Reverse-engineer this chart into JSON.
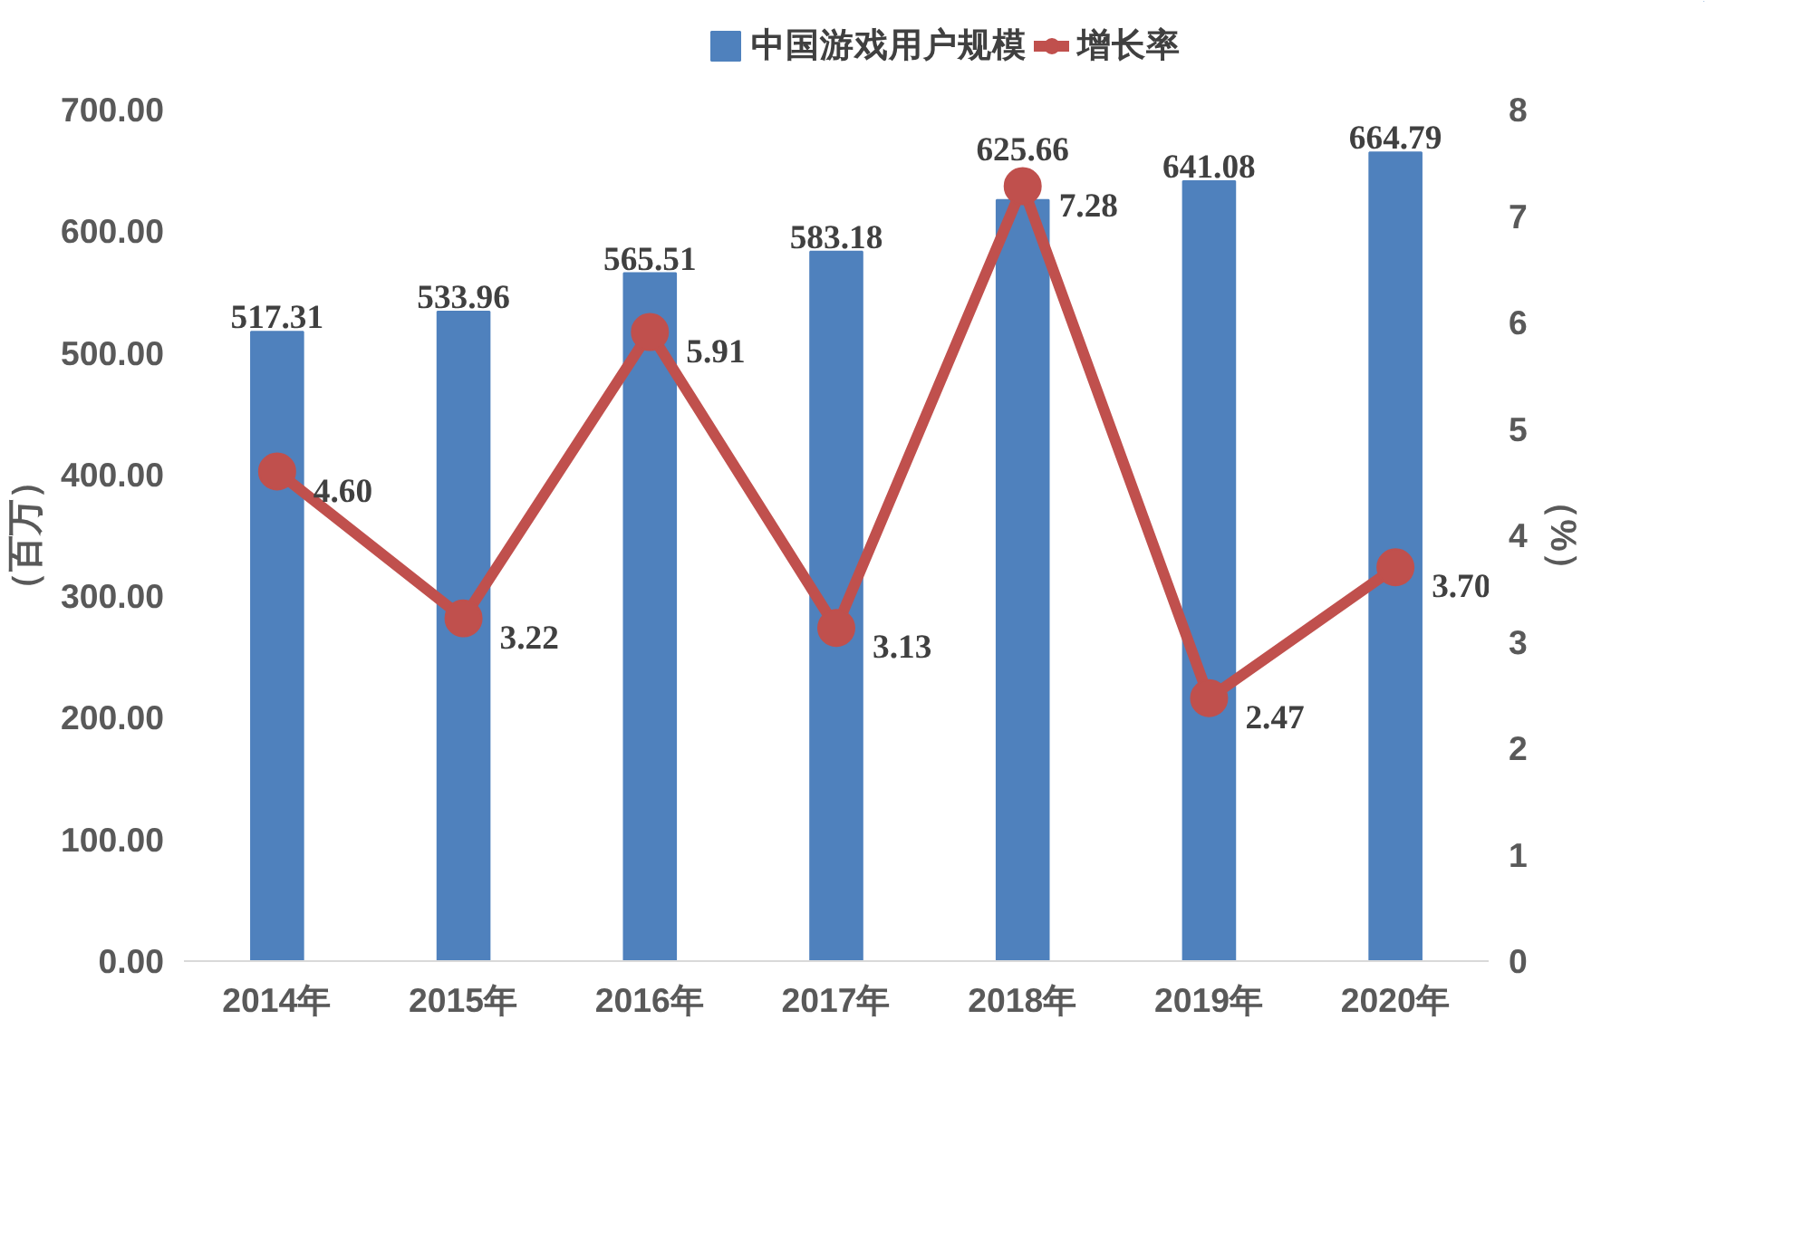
{
  "chart_data": {
    "type": "bar",
    "categories": [
      "2014年",
      "2015年",
      "2016年",
      "2017年",
      "2018年",
      "2019年",
      "2020年"
    ],
    "series": [
      {
        "name": "中国游戏用户规模",
        "color": "#4f81bd",
        "values": [
          517.31,
          533.96,
          565.51,
          583.18,
          625.66,
          641.08,
          664.79
        ],
        "value_labels": [
          "517.31",
          "533.96",
          "565.51",
          "583.18",
          "625.66",
          "641.08",
          "664.79"
        ]
      },
      {
        "name": "增长率",
        "type": "line",
        "axis": "y2",
        "color": "#c0504d",
        "marker": "circle",
        "values": [
          4.6,
          3.22,
          5.91,
          3.13,
          7.28,
          2.47,
          3.7
        ],
        "value_labels": [
          "4.60",
          "3.22",
          "5.91",
          "3.13",
          "7.28",
          "2.47",
          "3.70"
        ]
      }
    ],
    "ylabel": "（百万）",
    "y2label": "（%）",
    "ylim": [
      0,
      700
    ],
    "yticks": [
      {
        "value": 0,
        "label": "0.00"
      },
      {
        "value": 100,
        "label": "100.00"
      },
      {
        "value": 200,
        "label": "200.00"
      },
      {
        "value": 300,
        "label": "300.00"
      },
      {
        "value": 400,
        "label": "400.00"
      },
      {
        "value": 500,
        "label": "500.00"
      },
      {
        "value": 600,
        "label": "600.00"
      },
      {
        "value": 700,
        "label": "700.00"
      }
    ],
    "y2lim": [
      0,
      8
    ],
    "y2ticks": [
      0,
      1,
      2,
      3,
      4,
      5,
      6,
      7,
      8
    ],
    "legend": "top",
    "grid": false
  }
}
